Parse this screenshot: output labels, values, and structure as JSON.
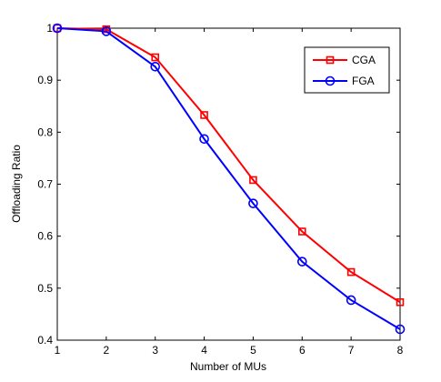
{
  "chart_data": {
    "type": "line",
    "x": [
      1,
      2,
      3,
      4,
      5,
      6,
      7,
      8
    ],
    "series": [
      {
        "name": "CGA",
        "color": "#ff0000",
        "marker": "square",
        "values": [
          1.0,
          0.998,
          0.944,
          0.833,
          0.708,
          0.609,
          0.531,
          0.473
        ]
      },
      {
        "name": "FGA",
        "color": "#0000ff",
        "marker": "circle",
        "values": [
          1.0,
          0.994,
          0.926,
          0.787,
          0.663,
          0.551,
          0.477,
          0.421
        ]
      }
    ],
    "xlabel": "Number of MUs",
    "ylabel": "Offloading Ratio",
    "xlim": [
      1,
      8
    ],
    "ylim": [
      0.4,
      1.0
    ],
    "xticks": [
      "1",
      "2",
      "3",
      "4",
      "5",
      "6",
      "7",
      "8"
    ],
    "yticks": [
      "0.4",
      "0.5",
      "0.6",
      "0.7",
      "0.8",
      "0.9",
      "1"
    ],
    "grid": false,
    "legend_position": "top-right"
  }
}
